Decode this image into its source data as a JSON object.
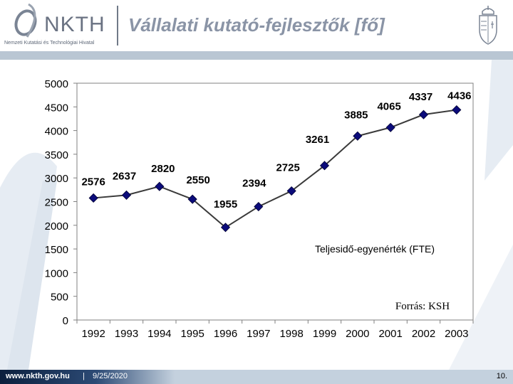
{
  "header": {
    "logo_text": "NKTH",
    "logo_subtitle": "Nemzeti Kutatási és Technológiai Hivatal",
    "title": "Vállalati kutató-fejlesztők [fő]"
  },
  "chart_data": {
    "type": "line",
    "title": "",
    "categories": [
      "1992",
      "1993",
      "1994",
      "1995",
      "1996",
      "1997",
      "1998",
      "1999",
      "2000",
      "2001",
      "2002",
      "2003"
    ],
    "series": [
      {
        "name": "Teljesidő-egyenérték (FTE)",
        "values": [
          2576,
          2637,
          2820,
          2550,
          1955,
          2394,
          2725,
          3261,
          3885,
          4065,
          4337,
          4436
        ]
      }
    ],
    "data_labels": [
      "2576",
      "2637",
      "2820",
      "2550",
      "1955",
      "2394",
      "2725",
      "3261",
      "3885",
      "4065",
      "4337",
      "4436"
    ],
    "y_ticks": [
      "0",
      "500",
      "1000",
      "1500",
      "2000",
      "2500",
      "3000",
      "3500",
      "4000",
      "4500",
      "5000"
    ],
    "ylim": [
      0,
      5000
    ],
    "xlabel": "",
    "ylabel": "",
    "legend_label": "Teljesidő-egyenérték (FTE)",
    "source_note": "Forrás: KSH",
    "line_color": "#3a3a3a",
    "marker_color": "#0b0b7a"
  },
  "footer": {
    "url": "www.nkth.gov.hu",
    "separator": "|",
    "date": "9/25/2020",
    "page_number": "10."
  }
}
